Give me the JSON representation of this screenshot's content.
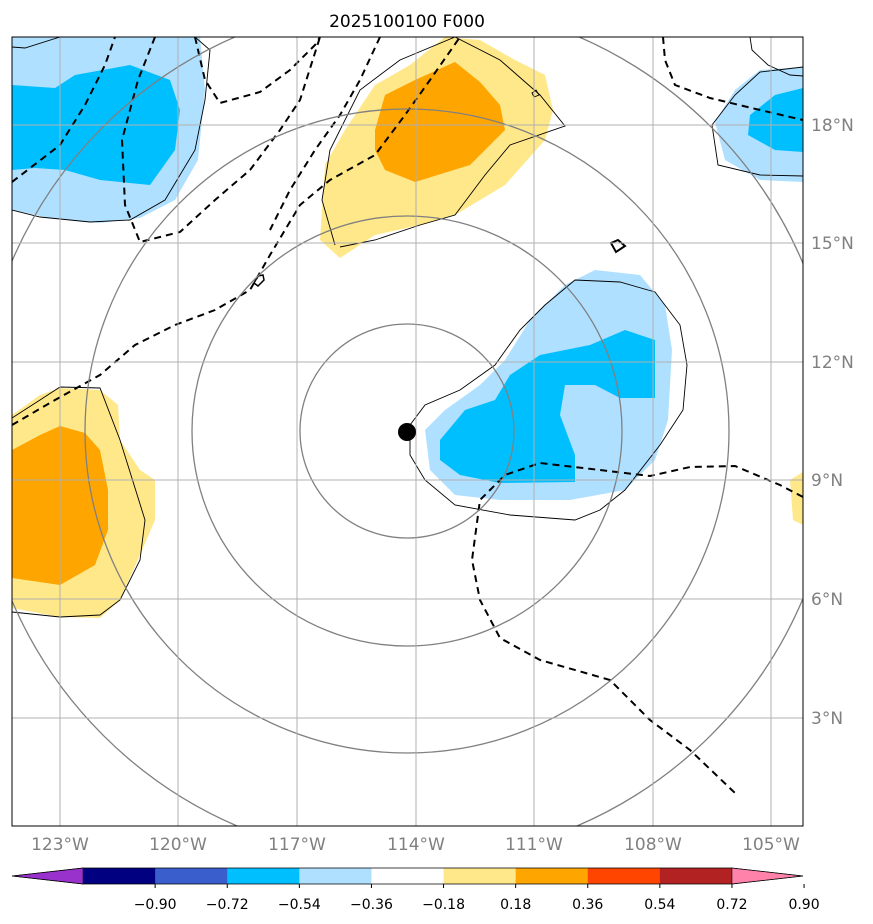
{
  "title": "2025100100 F000",
  "latitude_labels": [
    "18°N",
    "15°N",
    "12°N",
    "9°N",
    "6°N",
    "3°N"
  ],
  "longitude_labels": [
    "123°W",
    "120°W",
    "117°W",
    "114°W",
    "111°W",
    "108°W",
    "105°W"
  ],
  "colorbar": {
    "tick_labels": [
      "−0.90",
      "−0.72",
      "−0.54",
      "−0.36",
      "−0.18",
      "0.18",
      "0.36",
      "0.54",
      "0.72",
      "0.90"
    ],
    "under_color": "#9932cc",
    "over_color": "#ff82ab",
    "colors": [
      "#000080",
      "#3a5fcd",
      "#00bfff",
      "#b0e0ff",
      "#ffffff",
      "#ffe88a",
      "#ffa500",
      "#ff4500",
      "#b22222"
    ]
  },
  "storm_center": {
    "lat": 10.2,
    "lon": -114.2
  },
  "fill_colors": {
    "light_blue": "#b0e0ff",
    "blue": "#00bfff",
    "light_yellow": "#ffe88a",
    "orange": "#ffa500"
  },
  "range_ring_color": "#808080",
  "grid_color": "#b0b0b0"
}
